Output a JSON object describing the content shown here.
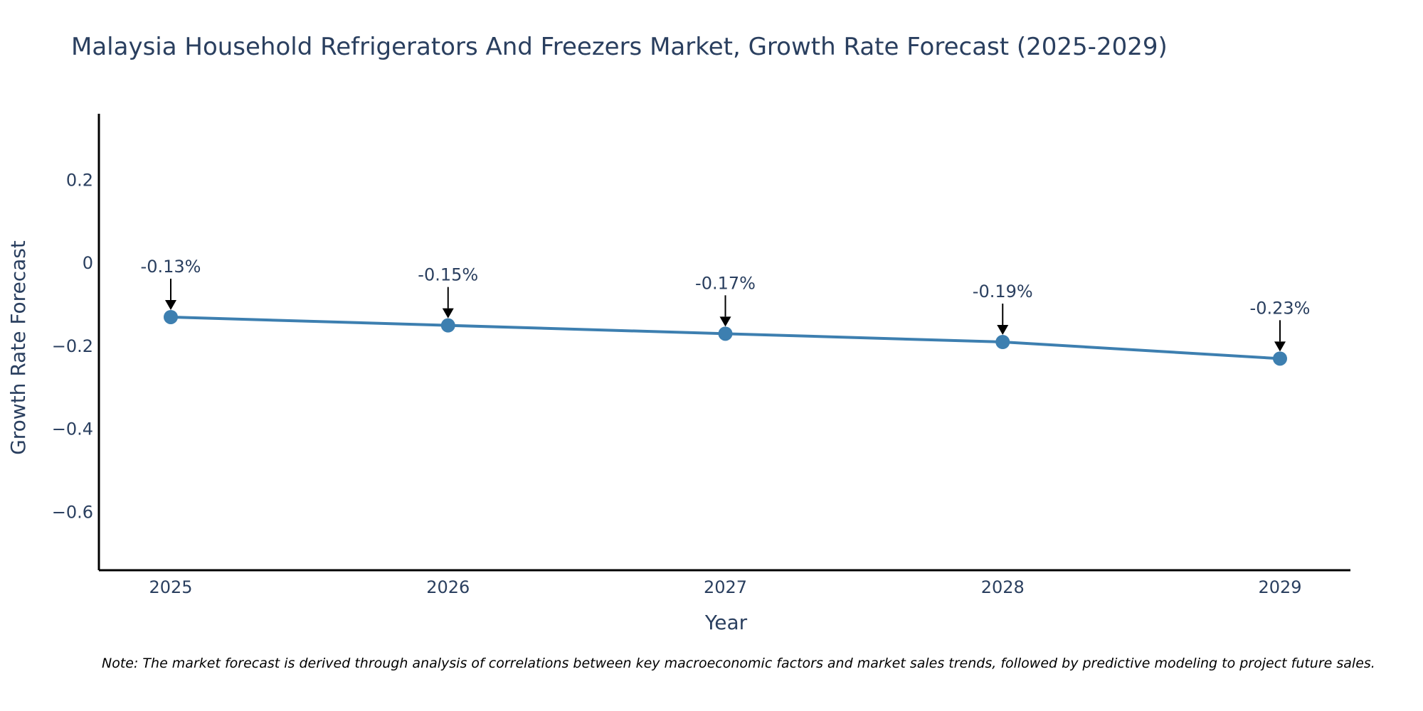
{
  "chart_data": {
    "type": "line",
    "title": "Malaysia Household Refrigerators And Freezers Market, Growth Rate Forecast (2025-2029)",
    "xlabel": "Year",
    "ylabel": "Growth Rate Forecast",
    "categories": [
      "2025",
      "2026",
      "2027",
      "2028",
      "2029"
    ],
    "values": [
      -0.13,
      -0.15,
      -0.17,
      -0.19,
      -0.23
    ],
    "data_labels": [
      "-0.13%",
      "-0.15%",
      "-0.17%",
      "-0.19%",
      "-0.23%"
    ],
    "y_ticks": [
      0.2,
      0,
      -0.2,
      -0.4,
      -0.6
    ],
    "y_tick_labels": [
      "0.2",
      "0",
      "−0.2",
      "−0.4",
      "−0.6"
    ],
    "ylim": [
      -0.74,
      0.36
    ],
    "grid": false,
    "legend": "none",
    "line_color": "#3d7fb0",
    "text_color": "#2a3f5f",
    "axis_color": "#000000"
  },
  "note": "Note: The market forecast is derived through analysis of correlations between key macroeconomic factors and market sales trends, followed by predictive modeling to project future sales."
}
